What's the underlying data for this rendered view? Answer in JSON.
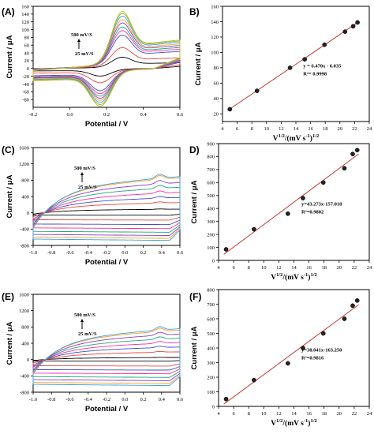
{
  "cv_colors": [
    "#000000",
    "#e8483a",
    "#3f4fc9",
    "#ff2aa6",
    "#1fa67a",
    "#8a39c7",
    "#ff9d1d",
    "#3aa0e2",
    "#7fbf2a",
    "#c8b52c"
  ],
  "fit_colors": {
    "line": "#c0392b",
    "marker": "#222222"
  },
  "chart_data": [
    {
      "id": "A",
      "type": "line",
      "panel_label": "(A)",
      "xlabel": "Potential / V",
      "ylabel": "Current / μA",
      "xlim": [
        -0.2,
        0.6
      ],
      "ylim": [
        -100,
        160
      ],
      "xticks": [
        -0.2,
        0.0,
        0.2,
        0.4,
        0.6
      ],
      "xtick_labels": [
        "-0.2",
        "0.0",
        "0.2",
        "0.4",
        "0.6"
      ],
      "yticks": [
        -80,
        -60,
        -40,
        -20,
        0,
        20,
        40,
        60,
        80,
        100,
        120,
        140,
        160
      ],
      "ytick_labels": [
        "-80",
        "-60",
        "-40",
        "-20",
        "0",
        "20",
        "40",
        "60",
        "80",
        "100",
        "120",
        "140",
        "160"
      ],
      "annotation_top": "500 mV/S",
      "annotation_bottom": "25 mV/S",
      "series_peaks": {
        "anodic": [
          27,
          50,
          80,
          91,
          100,
          110,
          118,
          127,
          134,
          139
        ],
        "cathodic": [
          -18,
          -34,
          -53,
          -60,
          -66,
          -71,
          -76,
          -81,
          -86,
          -90
        ]
      }
    },
    {
      "id": "B",
      "type": "scatter",
      "panel_label": "B)",
      "xlabel": "V^1/2/(mV s^-1)^1/2",
      "ylabel": "Current / μA",
      "xlim": [
        4,
        24
      ],
      "ylim": [
        10,
        160
      ],
      "xticks": [
        4,
        6,
        8,
        10,
        12,
        14,
        16,
        18,
        20,
        22,
        24
      ],
      "xtick_labels": [
        "4",
        "6",
        "8",
        "10",
        "12",
        "14",
        "16",
        "18",
        "20",
        "22",
        "24"
      ],
      "yticks": [
        20,
        40,
        60,
        80,
        100,
        120,
        140,
        160
      ],
      "ytick_labels": [
        "20",
        "40",
        "60",
        "80",
        "100",
        "120",
        "140",
        "160"
      ],
      "x": [
        5.0,
        8.7,
        13.2,
        15.2,
        17.9,
        20.7,
        21.8,
        22.4
      ],
      "y": [
        26,
        50,
        80,
        91,
        110,
        127,
        134,
        139
      ],
      "fit": {
        "slope": 6.47,
        "intercept": -6.035
      },
      "equation": "y = 6.470x - 6.035",
      "r2": "R²= 0.9998"
    },
    {
      "id": "C",
      "type": "line",
      "panel_label": "(C)",
      "xlabel": "Potential / V",
      "ylabel": "Current / μA",
      "xlim": [
        -1.0,
        0.6
      ],
      "ylim": [
        -800,
        1600
      ],
      "xticks": [
        -1.0,
        -0.8,
        -0.6,
        -0.4,
        -0.2,
        0.0,
        0.2,
        0.4,
        0.6
      ],
      "xtick_labels": [
        "-1.0",
        "-0.8",
        "-0.6",
        "-0.4",
        "-0.2",
        "0.0",
        "0.2",
        "0.4",
        "0.6"
      ],
      "yticks": [
        -800,
        -400,
        0,
        400,
        800,
        1200,
        1600
      ],
      "ytick_labels": [
        "-800",
        "-400",
        "0",
        "400",
        "800",
        "1200",
        "1600"
      ],
      "annotation_top": "500 mV/S",
      "annotation_bottom": "25 mV/S",
      "series_peaks": {
        "anodic": [
          85,
          240,
          360,
          480,
          600,
          710,
          820,
          850
        ],
        "cathodic": [
          -60,
          -180,
          -290,
          -390,
          -480,
          -560,
          -630,
          -680
        ]
      }
    },
    {
      "id": "D",
      "type": "scatter",
      "panel_label": "D)",
      "xlabel": "V^1/2/(mV s^-1)^1/2",
      "ylabel": "Current / μA",
      "xlim": [
        4,
        24
      ],
      "ylim": [
        0,
        900
      ],
      "xticks": [
        4,
        6,
        8,
        10,
        12,
        14,
        16,
        18,
        20,
        22,
        24
      ],
      "xtick_labels": [
        "4",
        "6",
        "8",
        "10",
        "12",
        "14",
        "16",
        "18",
        "20",
        "22",
        "24"
      ],
      "yticks": [
        0,
        100,
        200,
        300,
        400,
        500,
        600,
        700,
        800,
        900
      ],
      "ytick_labels": [
        "0",
        "100",
        "200",
        "300",
        "400",
        "500",
        "600",
        "700",
        "800",
        "900"
      ],
      "x": [
        5.0,
        8.7,
        13.2,
        15.2,
        17.9,
        20.7,
        21.8,
        22.4
      ],
      "y": [
        85,
        240,
        360,
        480,
        600,
        710,
        820,
        850
      ],
      "fit": {
        "slope": 43.273,
        "intercept": -157.018
      },
      "equation": "y=43.273x-157.018",
      "r2": "R²=0.9802"
    },
    {
      "id": "E",
      "type": "line",
      "panel_label": "(E)",
      "xlabel": "Potential / V",
      "ylabel": "Current / μA",
      "xlim": [
        -1.0,
        0.6
      ],
      "ylim": [
        -800,
        1600
      ],
      "xticks": [
        -1.0,
        -0.8,
        -0.6,
        -0.4,
        -0.2,
        0.0,
        0.2,
        0.4,
        0.6
      ],
      "xtick_labels": [
        "-1.0",
        "-0.8",
        "-0.6",
        "-0.4",
        "-0.2",
        "0.0",
        "0.2",
        "0.4",
        "0.6"
      ],
      "yticks": [
        -800,
        -400,
        0,
        400,
        800,
        1200,
        1600
      ],
      "ytick_labels": [
        "-800",
        "-400",
        "0",
        "400",
        "800",
        "1200",
        "1600"
      ],
      "annotation_top": "500 mV/S",
      "annotation_bottom": "25 mV/S",
      "series_peaks": {
        "anodic": [
          50,
          180,
          295,
          400,
          500,
          600,
          690,
          725
        ],
        "cathodic": [
          -40,
          -160,
          -260,
          -350,
          -440,
          -520,
          -590,
          -640
        ]
      }
    },
    {
      "id": "F",
      "type": "scatter",
      "panel_label": "(F)",
      "xlabel": "V^1/2/(mV s^-1)^1/2",
      "ylabel": "Current / μA",
      "xlim": [
        4,
        24
      ],
      "ylim": [
        0,
        800
      ],
      "xticks": [
        4,
        6,
        8,
        10,
        12,
        14,
        16,
        18,
        20,
        22,
        24
      ],
      "xtick_labels": [
        "4",
        "6",
        "8",
        "10",
        "12",
        "14",
        "16",
        "18",
        "20",
        "22",
        "24"
      ],
      "yticks": [
        0,
        100,
        200,
        300,
        400,
        500,
        600,
        700,
        800
      ],
      "ytick_labels": [
        "0",
        "100",
        "200",
        "300",
        "400",
        "500",
        "600",
        "700",
        "800"
      ],
      "x": [
        5.0,
        8.7,
        13.2,
        15.2,
        17.9,
        20.7,
        21.8,
        22.4
      ],
      "y": [
        50,
        180,
        295,
        400,
        500,
        600,
        690,
        725
      ],
      "fit": {
        "slope": 38.041,
        "intercept": -163.25
      },
      "equation": "y=38.041x-163.250",
      "r2": "R²=0.9816"
    }
  ]
}
